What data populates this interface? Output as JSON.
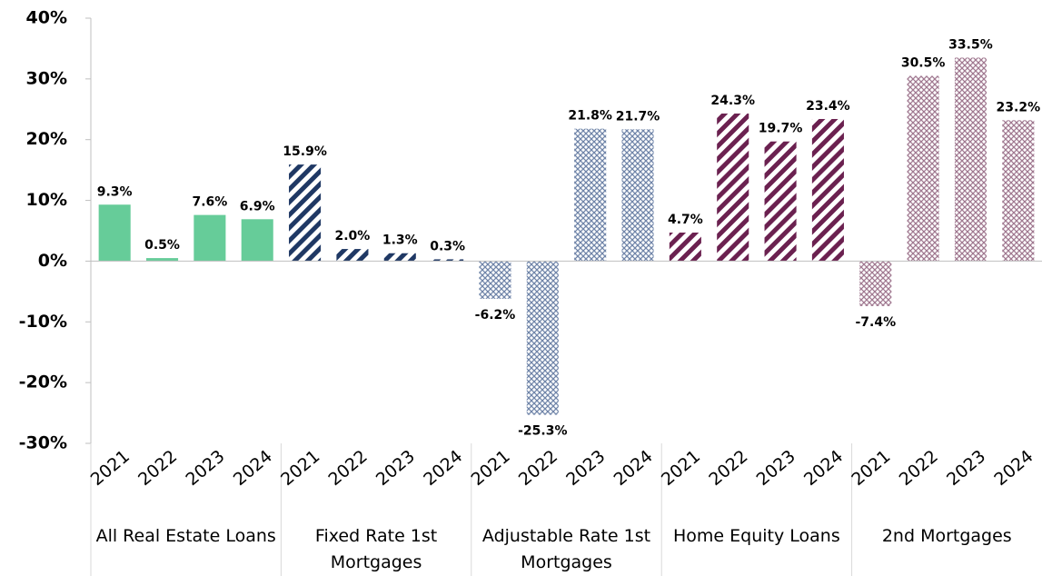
{
  "chart_data": {
    "type": "bar",
    "ylim": [
      -30,
      40
    ],
    "yticks": [
      {
        "value": -30,
        "label": "-30%"
      },
      {
        "value": -20,
        "label": "-20%"
      },
      {
        "value": -10,
        "label": "-10%"
      },
      {
        "value": 0,
        "label": "0%"
      },
      {
        "value": 10,
        "label": "10%"
      },
      {
        "value": 20,
        "label": "20%"
      },
      {
        "value": 30,
        "label": "30%"
      },
      {
        "value": 40,
        "label": "40%"
      }
    ],
    "groups": [
      {
        "name": "All Real Estate Loans",
        "color": "#66cc99",
        "pattern": "solid",
        "categories": [
          "2021",
          "2022",
          "2023",
          "2024"
        ],
        "values": [
          9.3,
          0.5,
          7.6,
          6.9
        ],
        "value_labels": [
          "9.3%",
          "0.5%",
          "7.6%",
          "6.9%"
        ]
      },
      {
        "name": "Fixed Rate 1st Mortgages",
        "color": "#1f3864",
        "pattern": "stripes",
        "categories": [
          "2021",
          "2022",
          "2023",
          "2024"
        ],
        "values": [
          15.9,
          2.0,
          1.3,
          0.3
        ],
        "value_labels": [
          "15.9%",
          "2.0%",
          "1.3%",
          "0.3%"
        ]
      },
      {
        "name": "Adjustable Rate 1st Mortgages",
        "color": "#6f84a8",
        "pattern": "crosshatch",
        "categories": [
          "2021",
          "2022",
          "2023",
          "2024"
        ],
        "values": [
          -6.2,
          -25.3,
          21.8,
          21.7
        ],
        "value_labels": [
          "-6.2%",
          "-25.3%",
          "21.8%",
          "21.7%"
        ]
      },
      {
        "name": "Home Equity Loans",
        "color": "#6b2150",
        "pattern": "stripes",
        "categories": [
          "2021",
          "2022",
          "2023",
          "2024"
        ],
        "values": [
          4.7,
          24.3,
          19.7,
          23.4
        ],
        "value_labels": [
          "4.7%",
          "24.3%",
          "19.7%",
          "23.4%"
        ]
      },
      {
        "name": "2nd Mortgages",
        "color": "#a07890",
        "pattern": "crosshatch",
        "categories": [
          "2021",
          "2022",
          "2023",
          "2024"
        ],
        "values": [
          -7.4,
          30.5,
          33.5,
          23.2
        ],
        "value_labels": [
          "-7.4%",
          "30.5%",
          "33.5%",
          "23.2%"
        ]
      }
    ]
  }
}
